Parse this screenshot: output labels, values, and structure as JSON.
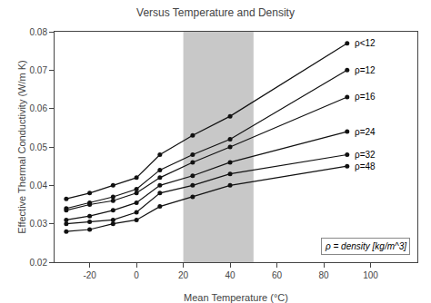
{
  "chart_data": {
    "type": "line",
    "title": "Versus Temperature and Density",
    "xlabel": "Mean Temperature (°C)",
    "ylabel": "Effective Thermal Conductivity (W/m K)",
    "xlim": [
      -35,
      120
    ],
    "ylim": [
      0.02,
      0.08
    ],
    "xticks": [
      -20,
      0,
      20,
      40,
      60,
      80,
      100
    ],
    "yticks": [
      0.02,
      0.03,
      0.04,
      0.05,
      0.06,
      0.07,
      0.08
    ],
    "grid": false,
    "color": "#111111",
    "marker": "circle",
    "line_style": "solid",
    "shaded_region": {
      "x": [
        20,
        50
      ],
      "color": "#c8c8c8"
    },
    "annotation": "ρ = density [kg/m^3]",
    "series": [
      {
        "name": "ρ<12",
        "x": [
          -30,
          -20,
          -10,
          0,
          10,
          24,
          40,
          90
        ],
        "values": [
          0.0365,
          0.038,
          0.04,
          0.042,
          0.048,
          0.053,
          0.058,
          0.077
        ]
      },
      {
        "name": "ρ=12",
        "x": [
          -30,
          -20,
          -10,
          0,
          10,
          24,
          40,
          90
        ],
        "values": [
          0.034,
          0.0355,
          0.037,
          0.039,
          0.044,
          0.048,
          0.052,
          0.07
        ]
      },
      {
        "name": "ρ=16",
        "x": [
          -30,
          -20,
          -10,
          0,
          10,
          24,
          40,
          90
        ],
        "values": [
          0.0335,
          0.035,
          0.036,
          0.038,
          0.042,
          0.046,
          0.05,
          0.063
        ]
      },
      {
        "name": "ρ=24",
        "x": [
          -30,
          -20,
          -10,
          0,
          10,
          24,
          40,
          90
        ],
        "values": [
          0.031,
          0.032,
          0.0335,
          0.0355,
          0.04,
          0.0425,
          0.046,
          0.054
        ]
      },
      {
        "name": "ρ=32",
        "x": [
          -30,
          -20,
          -10,
          0,
          10,
          24,
          40,
          90
        ],
        "values": [
          0.03,
          0.0305,
          0.031,
          0.033,
          0.038,
          0.04,
          0.043,
          0.048
        ]
      },
      {
        "name": "ρ=48",
        "x": [
          -30,
          -20,
          -10,
          0,
          10,
          24,
          40,
          90
        ],
        "values": [
          0.028,
          0.0285,
          0.03,
          0.031,
          0.0345,
          0.037,
          0.04,
          0.045
        ]
      }
    ]
  }
}
